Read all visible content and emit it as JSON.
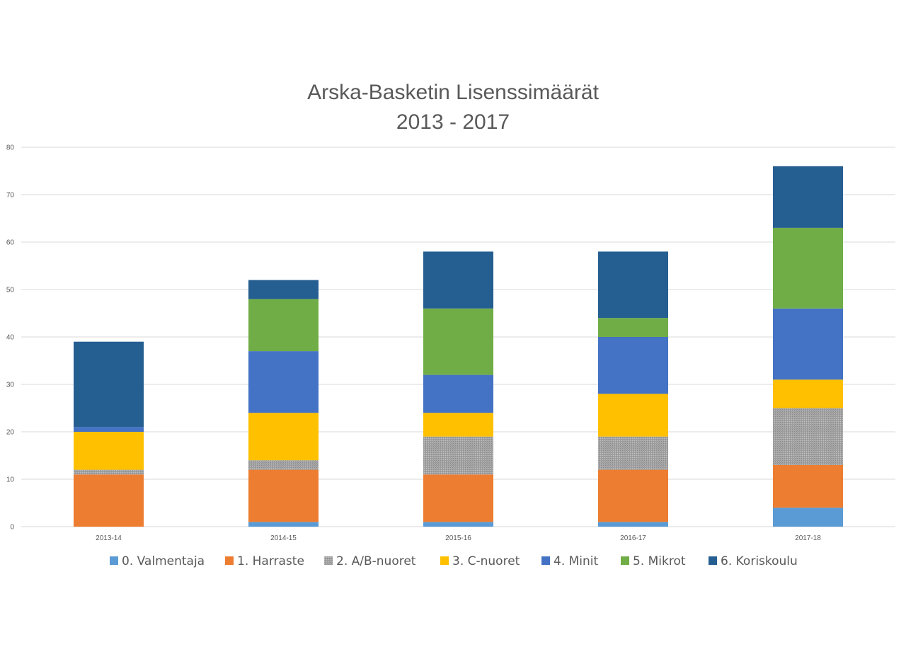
{
  "chart_data": {
    "type": "bar",
    "stacked": true,
    "title": "Arska-Basketin Lisenssimäärät",
    "subtitle": "2013 - 2017",
    "categories": [
      "2013-14",
      "2014-15",
      "2015-16",
      "2016-17",
      "2017-18"
    ],
    "ylim": [
      0,
      80
    ],
    "yticks": [
      0,
      10,
      20,
      30,
      40,
      50,
      60,
      70,
      80
    ],
    "grid": true,
    "legend_position": "bottom",
    "series": [
      {
        "name": "0. Valmentaja",
        "color": "#5b9bd5",
        "values": [
          0,
          1,
          1,
          1,
          4
        ]
      },
      {
        "name": "1. Harraste",
        "color": "#ed7d31",
        "values": [
          11,
          11,
          10,
          11,
          9
        ]
      },
      {
        "name": "2. A/B-nuoret",
        "color": "#a5a5a5",
        "values": [
          1,
          2,
          8,
          7,
          12
        ]
      },
      {
        "name": "3. C-nuoret",
        "color": "#ffc000",
        "values": [
          8,
          10,
          5,
          9,
          6
        ]
      },
      {
        "name": "4. Minit",
        "color": "#4472c4",
        "values": [
          1,
          13,
          8,
          12,
          15
        ]
      },
      {
        "name": "5. Mikrot",
        "color": "#70ad47",
        "values": [
          0,
          11,
          14,
          4,
          17
        ]
      },
      {
        "name": "6. Koriskoulu",
        "color": "#255e91",
        "values": [
          18,
          4,
          12,
          14,
          13
        ]
      }
    ]
  }
}
